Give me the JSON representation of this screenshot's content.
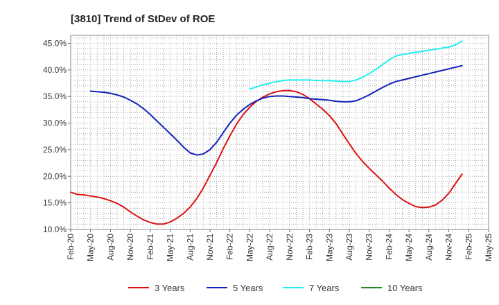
{
  "chart_data": {
    "type": "line",
    "title": "[3810]  Trend of StDev of ROE",
    "xlabel": "",
    "ylabel": "",
    "x_ticks": [
      "Feb-20",
      "May-20",
      "Aug-20",
      "Nov-20",
      "Feb-21",
      "May-21",
      "Aug-21",
      "Nov-21",
      "Feb-22",
      "May-22",
      "Aug-22",
      "Nov-22",
      "Feb-23",
      "May-23",
      "Aug-23",
      "Nov-23",
      "Feb-24",
      "May-24",
      "Aug-24",
      "Nov-24",
      "Feb-25",
      "May-25"
    ],
    "y_ticks": [
      "10.0%",
      "15.0%",
      "20.0%",
      "25.0%",
      "30.0%",
      "35.0%",
      "40.0%",
      "45.0%"
    ],
    "ylim": [
      10,
      46.5
    ],
    "grid": true,
    "legend_position": "bottom",
    "x_start": "Feb-20",
    "x_end": "May-25",
    "series": [
      {
        "name": "3 Years",
        "color": "#dd1111",
        "points": [
          [
            "Feb-20",
            17.0
          ],
          [
            "Mar-20",
            16.6
          ],
          [
            "Apr-20",
            16.5
          ],
          [
            "May-20",
            16.3
          ],
          [
            "Jun-20",
            16.1
          ],
          [
            "Jul-20",
            15.8
          ],
          [
            "Aug-20",
            15.4
          ],
          [
            "Sep-20",
            14.9
          ],
          [
            "Oct-20",
            14.2
          ],
          [
            "Nov-20",
            13.3
          ],
          [
            "Dec-20",
            12.5
          ],
          [
            "Jan-21",
            11.8
          ],
          [
            "Feb-21",
            11.3
          ],
          [
            "Mar-21",
            11.0
          ],
          [
            "Apr-21",
            11.0
          ],
          [
            "May-21",
            11.4
          ],
          [
            "Jun-21",
            12.1
          ],
          [
            "Jul-21",
            13.0
          ],
          [
            "Aug-21",
            14.2
          ],
          [
            "Sep-21",
            15.8
          ],
          [
            "Oct-21",
            17.8
          ],
          [
            "Nov-21",
            20.2
          ],
          [
            "Dec-21",
            22.6
          ],
          [
            "Jan-22",
            25.2
          ],
          [
            "Feb-22",
            27.6
          ],
          [
            "Mar-22",
            29.8
          ],
          [
            "Apr-22",
            31.6
          ],
          [
            "May-22",
            33.0
          ],
          [
            "Jun-22",
            34.1
          ],
          [
            "Jul-22",
            34.9
          ],
          [
            "Aug-22",
            35.5
          ],
          [
            "Sep-22",
            35.9
          ],
          [
            "Oct-22",
            36.1
          ],
          [
            "Nov-22",
            36.1
          ],
          [
            "Dec-22",
            35.9
          ],
          [
            "Jan-23",
            35.4
          ],
          [
            "Feb-23",
            34.6
          ],
          [
            "Mar-23",
            33.6
          ],
          [
            "Apr-23",
            32.6
          ],
          [
            "May-23",
            31.4
          ],
          [
            "Jun-23",
            29.9
          ],
          [
            "Jul-23",
            28.0
          ],
          [
            "Aug-23",
            26.1
          ],
          [
            "Sep-23",
            24.3
          ],
          [
            "Oct-23",
            22.8
          ],
          [
            "Nov-23",
            21.5
          ],
          [
            "Dec-23",
            20.3
          ],
          [
            "Jan-24",
            19.1
          ],
          [
            "Feb-24",
            17.8
          ],
          [
            "Mar-24",
            16.6
          ],
          [
            "Apr-24",
            15.6
          ],
          [
            "May-24",
            14.9
          ],
          [
            "Jun-24",
            14.3
          ],
          [
            "Jul-24",
            14.1
          ],
          [
            "Aug-24",
            14.2
          ],
          [
            "Sep-24",
            14.6
          ],
          [
            "Oct-24",
            15.5
          ],
          [
            "Nov-24",
            16.8
          ],
          [
            "Dec-24",
            18.6
          ],
          [
            "Jan-25",
            20.4
          ]
        ]
      },
      {
        "name": "5 Years",
        "color": "#1122bb",
        "points": [
          [
            "May-20",
            36.0
          ],
          [
            "Jun-20",
            35.9
          ],
          [
            "Jul-20",
            35.8
          ],
          [
            "Aug-20",
            35.6
          ],
          [
            "Sep-20",
            35.3
          ],
          [
            "Oct-20",
            34.9
          ],
          [
            "Nov-20",
            34.3
          ],
          [
            "Dec-20",
            33.6
          ],
          [
            "Jan-21",
            32.7
          ],
          [
            "Feb-21",
            31.6
          ],
          [
            "Mar-21",
            30.4
          ],
          [
            "Apr-21",
            29.2
          ],
          [
            "May-21",
            28.0
          ],
          [
            "Jun-21",
            26.8
          ],
          [
            "Jul-21",
            25.5
          ],
          [
            "Aug-21",
            24.4
          ],
          [
            "Sep-21",
            24.0
          ],
          [
            "Oct-21",
            24.2
          ],
          [
            "Nov-21",
            25.0
          ],
          [
            "Dec-21",
            26.4
          ],
          [
            "Jan-22",
            28.2
          ],
          [
            "Feb-22",
            30.0
          ],
          [
            "Mar-22",
            31.5
          ],
          [
            "Apr-22",
            32.6
          ],
          [
            "May-22",
            33.5
          ],
          [
            "Jun-22",
            34.2
          ],
          [
            "Jul-22",
            34.7
          ],
          [
            "Aug-22",
            35.0
          ],
          [
            "Sep-22",
            35.1
          ],
          [
            "Oct-22",
            35.1
          ],
          [
            "Nov-22",
            35.0
          ],
          [
            "Dec-22",
            34.9
          ],
          [
            "Jan-23",
            34.8
          ],
          [
            "Feb-23",
            34.6
          ],
          [
            "Mar-23",
            34.5
          ],
          [
            "Apr-23",
            34.4
          ],
          [
            "May-23",
            34.3
          ],
          [
            "Jun-23",
            34.1
          ],
          [
            "Jul-23",
            34.0
          ],
          [
            "Aug-23",
            34.0
          ],
          [
            "Sep-23",
            34.2
          ],
          [
            "Oct-23",
            34.7
          ],
          [
            "Nov-23",
            35.3
          ],
          [
            "Dec-23",
            36.0
          ],
          [
            "Jan-24",
            36.7
          ],
          [
            "Feb-24",
            37.3
          ],
          [
            "Mar-24",
            37.8
          ],
          [
            "Apr-24",
            38.1
          ],
          [
            "May-24",
            38.4
          ],
          [
            "Jun-24",
            38.7
          ],
          [
            "Jul-24",
            39.0
          ],
          [
            "Aug-24",
            39.3
          ],
          [
            "Sep-24",
            39.6
          ],
          [
            "Oct-24",
            39.9
          ],
          [
            "Nov-24",
            40.2
          ],
          [
            "Dec-24",
            40.5
          ],
          [
            "Jan-25",
            40.8
          ]
        ]
      },
      {
        "name": "7 Years",
        "color": "#22eeee",
        "points": [
          [
            "May-22",
            36.4
          ],
          [
            "Jun-22",
            36.8
          ],
          [
            "Jul-22",
            37.2
          ],
          [
            "Aug-22",
            37.5
          ],
          [
            "Sep-22",
            37.8
          ],
          [
            "Oct-22",
            38.0
          ],
          [
            "Nov-22",
            38.1
          ],
          [
            "Dec-22",
            38.1
          ],
          [
            "Jan-23",
            38.1
          ],
          [
            "Feb-23",
            38.1
          ],
          [
            "Mar-23",
            38.0
          ],
          [
            "Apr-23",
            38.0
          ],
          [
            "May-23",
            38.0
          ],
          [
            "Jun-23",
            37.9
          ],
          [
            "Jul-23",
            37.8
          ],
          [
            "Aug-23",
            37.8
          ],
          [
            "Sep-23",
            38.1
          ],
          [
            "Oct-23",
            38.6
          ],
          [
            "Nov-23",
            39.3
          ],
          [
            "Dec-23",
            40.1
          ],
          [
            "Jan-24",
            41.0
          ],
          [
            "Feb-24",
            41.9
          ],
          [
            "Mar-24",
            42.6
          ],
          [
            "Apr-24",
            42.9
          ],
          [
            "May-24",
            43.1
          ],
          [
            "Jun-24",
            43.3
          ],
          [
            "Jul-24",
            43.5
          ],
          [
            "Aug-24",
            43.7
          ],
          [
            "Sep-24",
            43.9
          ],
          [
            "Oct-24",
            44.1
          ],
          [
            "Nov-24",
            44.3
          ],
          [
            "Dec-24",
            44.7
          ],
          [
            "Jan-25",
            45.4
          ]
        ]
      },
      {
        "name": "10 Years",
        "color": "#228822",
        "points": []
      }
    ]
  }
}
